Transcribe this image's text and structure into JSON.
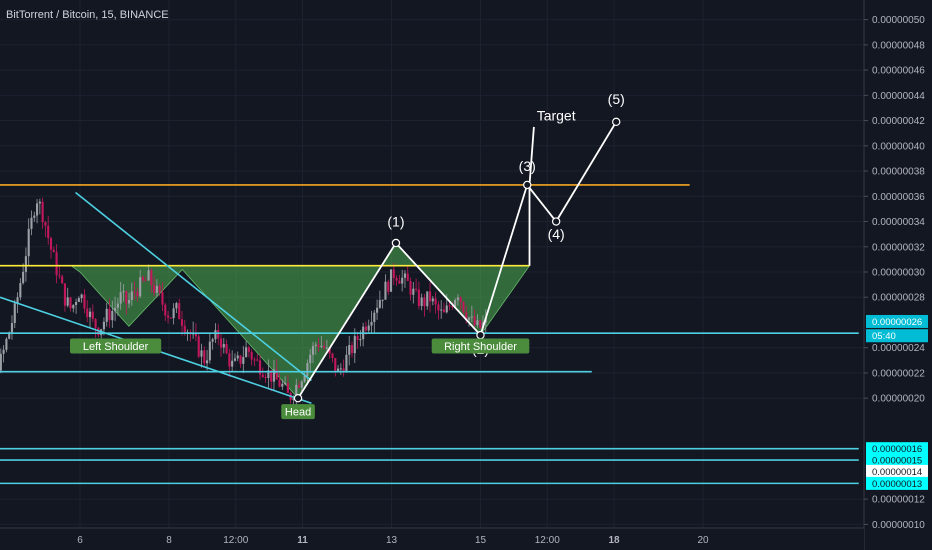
{
  "chart_data": {
    "type": "candlestick",
    "title": "BitTorrent / Bitcoin, 15, BINANCE",
    "symbol": "BitTorrent / Bitcoin",
    "interval": "15",
    "exchange": "BINANCE",
    "y_ticks": [
      "0.00000050",
      "0.00000048",
      "0.00000046",
      "0.00000044",
      "0.00000042",
      "0.00000040",
      "0.00000038",
      "0.00000036",
      "0.00000034",
      "0.00000032",
      "0.00000030",
      "0.00000028",
      "0.00000024",
      "0.00000022",
      "0.00000020",
      "0.00000012",
      "0.00000010"
    ],
    "y_tick_values": [
      50,
      48,
      46,
      44,
      42,
      40,
      38,
      36,
      34,
      32,
      30,
      28,
      24,
      22,
      20,
      12,
      10
    ],
    "ylim": [
      10,
      50
    ],
    "x_ticks": [
      "6",
      "8",
      "12:00",
      "11",
      "13",
      "15",
      "12:00",
      "18",
      "20"
    ],
    "x_tick_positions": [
      1.0,
      3.0,
      4.5,
      6.0,
      8.0,
      10.0,
      11.5,
      13.0,
      15.0
    ],
    "xlim": [
      0,
      18.5
    ],
    "price_badges": [
      {
        "label": "0.00000026",
        "value": 26.08,
        "color": "#00bcd4"
      },
      {
        "label": "05:40",
        "value": 24.95,
        "color": "#00bcd4"
      },
      {
        "label": "0.00000016",
        "value": 16.0,
        "color": "#00ffff"
      },
      {
        "label": "0.00000015",
        "value": 15.1,
        "color": "#00ffff"
      },
      {
        "label": "0.00000014",
        "value": 14.2,
        "color": "#ffffff"
      },
      {
        "label": "0.00000013",
        "value": 13.25,
        "color": "#00ffff"
      }
    ],
    "candles_path": [
      15.5,
      16.5,
      18,
      20,
      22,
      22.5,
      23,
      25,
      27,
      30,
      33,
      36,
      34.5,
      32,
      30,
      28,
      27,
      28.5,
      27.5,
      26,
      25.5,
      26.5,
      27,
      28,
      27.5,
      28.5,
      29,
      29.5,
      28.5,
      27.5,
      26.5,
      27,
      26,
      25,
      24,
      23,
      24.5,
      25,
      23.5,
      22.5,
      23,
      24,
      23,
      22.5,
      22,
      21.5,
      21,
      20,
      21,
      22,
      23.5,
      24.5,
      24,
      23,
      22,
      23,
      24,
      25,
      26,
      27,
      28,
      29,
      30,
      29.5,
      29,
      28,
      27.5,
      28,
      27,
      26.5,
      27.5,
      28.5,
      27,
      26,
      25.5,
      26
    ],
    "horizontal_lines": [
      {
        "name": "Resistance",
        "value": 36.9,
        "x_from": -1.5,
        "x_to": 14.7,
        "color": "#f5a623"
      },
      {
        "name": "Neckline",
        "value": 30.5,
        "x_from": -1.3,
        "x_to": 11.1,
        "color": "#ffeb3b"
      },
      {
        "name": "Current",
        "value": 25.15,
        "x_from": -2.0,
        "x_to": 18.5,
        "color": "#4dd0e1"
      },
      {
        "name": "Support 1",
        "value": 22.1,
        "x_from": -1.5,
        "x_to": 12.5,
        "color": "#4dd0e1"
      },
      {
        "name": "Support 2",
        "value": 16.0,
        "x_from": -2.0,
        "x_to": 18.5,
        "color": "#4dd0e1"
      },
      {
        "name": "Support 3",
        "value": 15.1,
        "x_from": -2.0,
        "x_to": 18.5,
        "color": "#4dd0e1"
      },
      {
        "name": "Support 4",
        "value": 13.25,
        "x_from": -2.0,
        "x_to": 18.5,
        "color": "#4dd0e1"
      }
    ],
    "trend_lines": [
      {
        "x1": 0.9,
        "y1": 36.3,
        "x2": 6.2,
        "y2": 21.4,
        "color": "#4dd0e1"
      },
      {
        "x1": -2.0,
        "y1": 28.0,
        "x2": 6.2,
        "y2": 19.6,
        "color": "#4dd0e1"
      }
    ],
    "pattern": {
      "fill_color": "rgba(76,175,80,0.55)",
      "outline_points": [
        [
          -1.3,
          30.5
        ],
        [
          0.8,
          30.5
        ],
        [
          1.0,
          30.0
        ],
        [
          2.1,
          25.7
        ],
        [
          3.3,
          30.2
        ],
        [
          5.9,
          20.0
        ],
        [
          8.1,
          32.3
        ],
        [
          10.0,
          25.0
        ],
        [
          11.1,
          30.5
        ]
      ],
      "labels": [
        {
          "text": "Left Shoulder",
          "x": 1.8,
          "y": 24.1
        },
        {
          "text": "Head",
          "x": 5.9,
          "y": 18.9
        },
        {
          "text": "Right Shoulder",
          "x": 10.0,
          "y": 24.1
        }
      ]
    },
    "wave_path": [
      [
        5.9,
        20.0
      ],
      [
        8.1,
        32.3
      ],
      [
        10.0,
        25.0
      ],
      [
        11.05,
        36.9
      ],
      [
        11.7,
        34.0
      ],
      [
        13.05,
        41.9
      ]
    ],
    "target_line": [
      [
        11.1,
        30.5
      ],
      [
        11.1,
        36.9
      ],
      [
        11.2,
        41.5
      ]
    ],
    "wave_labels": [
      {
        "text": "(1)",
        "x": 8.1,
        "y": 33.6
      },
      {
        "text": "(2)",
        "x": 10.0,
        "y": 23.5
      },
      {
        "text": "(3)",
        "x": 11.05,
        "y": 38.0
      },
      {
        "text": "(4)",
        "x": 11.7,
        "y": 32.6
      },
      {
        "text": "(5)",
        "x": 13.05,
        "y": 43.3
      },
      {
        "text": "Target",
        "x": 11.7,
        "y": 42.0
      }
    ]
  }
}
